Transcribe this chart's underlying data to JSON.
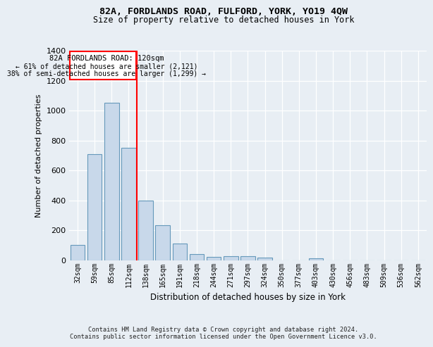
{
  "title": "82A, FORDLANDS ROAD, FULFORD, YORK, YO19 4QW",
  "subtitle": "Size of property relative to detached houses in York",
  "xlabel": "Distribution of detached houses by size in York",
  "ylabel": "Number of detached properties",
  "footer1": "Contains HM Land Registry data © Crown copyright and database right 2024.",
  "footer2": "Contains public sector information licensed under the Open Government Licence v3.0.",
  "categories": [
    "32sqm",
    "59sqm",
    "85sqm",
    "112sqm",
    "138sqm",
    "165sqm",
    "191sqm",
    "218sqm",
    "244sqm",
    "271sqm",
    "297sqm",
    "324sqm",
    "350sqm",
    "377sqm",
    "403sqm",
    "430sqm",
    "456sqm",
    "483sqm",
    "509sqm",
    "536sqm",
    "562sqm"
  ],
  "values": [
    100,
    710,
    1050,
    750,
    400,
    235,
    110,
    40,
    22,
    27,
    25,
    15,
    0,
    0,
    13,
    0,
    0,
    0,
    0,
    0,
    0
  ],
  "bar_color": "#c8d8ea",
  "bar_edge_color": "#6699bb",
  "vline_x": 3.5,
  "vline_color": "red",
  "ylim": [
    0,
    1400
  ],
  "yticks": [
    0,
    200,
    400,
    600,
    800,
    1000,
    1200,
    1400
  ],
  "annotation_title": "82A FORDLANDS ROAD: 120sqm",
  "annotation_line1": "← 61% of detached houses are smaller (2,121)",
  "annotation_line2": "38% of semi-detached houses are larger (1,299) →",
  "bg_color": "#e8eef4",
  "plot_bg_color": "#e8eef4",
  "grid_color": "white"
}
